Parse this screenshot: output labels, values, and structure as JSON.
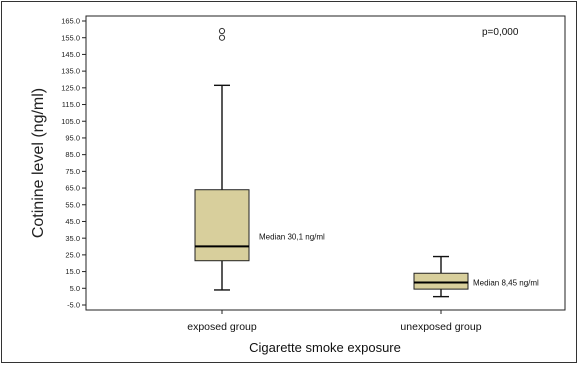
{
  "chart_data": {
    "type": "boxplot",
    "xlabel": "Cigarette smoke exposure",
    "ylabel": "Cotinine level (ng/ml)",
    "ylim": [
      -8,
      168
    ],
    "yticks": [
      "-5.0",
      "5.0",
      "15.0",
      "25.0",
      "35.0",
      "45.0",
      "55.0",
      "65.0",
      "75.0",
      "85.0",
      "95.0",
      "105.0",
      "115.0",
      "125.0",
      "135.0",
      "145.0",
      "155.0",
      "165.0"
    ],
    "annotation": "p=0,000",
    "grid": false,
    "box_color": "#d8cf9c",
    "groups": [
      {
        "label": "exposed group",
        "min": 4,
        "q1": 21.5,
        "median": 30.1,
        "q3": 64,
        "max": 126.5,
        "outliers": [
          159,
          155
        ],
        "median_label": "Median 30,1 ng/ml"
      },
      {
        "label": "unexposed group",
        "min": 0,
        "q1": 4.5,
        "median": 8.45,
        "q3": 14,
        "max": 24,
        "outliers": [],
        "median_label": "Median 8,45 ng/ml"
      }
    ]
  }
}
